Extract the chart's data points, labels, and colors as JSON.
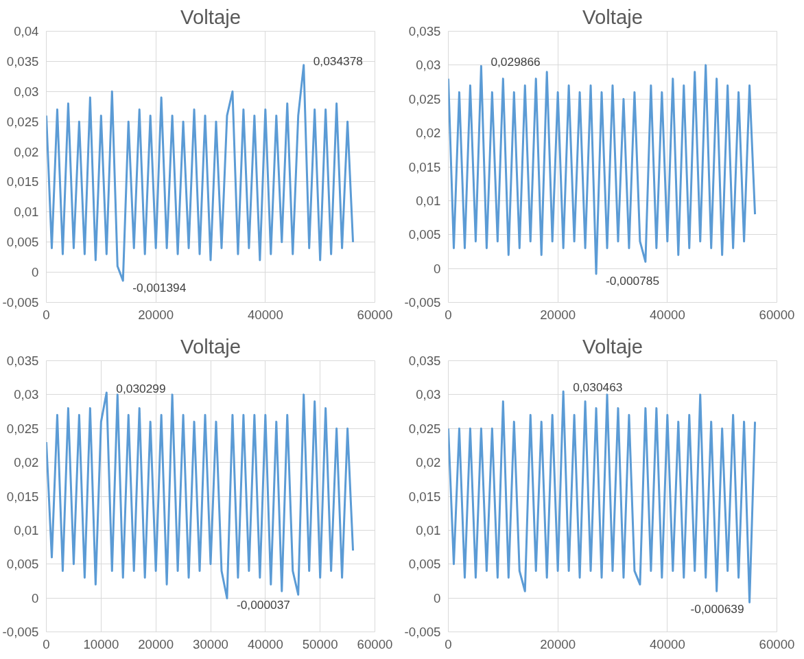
{
  "chart_data": [
    {
      "type": "line",
      "title": "Voltaje",
      "grid": true,
      "marker": "none",
      "line_style": "solid",
      "xlim": [
        0,
        60000
      ],
      "xticks": [
        0,
        20000,
        40000,
        60000
      ],
      "ylim": [
        -0.005,
        0.04
      ],
      "yticks": [
        {
          "value": -0.005,
          "label": "-0,005"
        },
        0,
        {
          "value": 0.005,
          "label": "0,005"
        },
        {
          "value": 0.01,
          "label": "0,01"
        },
        {
          "value": 0.015,
          "label": "0,015"
        },
        {
          "value": 0.02,
          "label": "0,02"
        },
        {
          "value": 0.025,
          "label": "0,025"
        },
        {
          "value": 0.03,
          "label": "0,03"
        },
        {
          "value": 0.035,
          "label": "0,035"
        },
        {
          "value": 0.04,
          "label": "0,04"
        }
      ],
      "annotations": [
        {
          "text": "0,034378",
          "x": 47000,
          "y": 0.034378
        },
        {
          "text": "-0,001394",
          "x": 14000,
          "y": -0.001394
        }
      ],
      "series": [
        {
          "color": "#5b9bd5",
          "x": [
            0,
            1000,
            2000,
            3000,
            4000,
            5000,
            6000,
            7000,
            8000,
            9000,
            10000,
            11000,
            12000,
            13000,
            14000,
            15000,
            16000,
            17000,
            18000,
            19000,
            20000,
            21000,
            22000,
            23000,
            24000,
            25000,
            26000,
            27000,
            28000,
            29000,
            30000,
            31000,
            32000,
            33000,
            34000,
            35000,
            36000,
            37000,
            38000,
            39000,
            40000,
            41000,
            42000,
            43000,
            44000,
            45000,
            46000,
            47000,
            48000,
            49000,
            50000,
            51000,
            52000,
            53000,
            54000,
            55000,
            56000
          ],
          "values": [
            0.026,
            0.004,
            0.027,
            0.003,
            0.028,
            0.004,
            0.025,
            0.003,
            0.029,
            0.002,
            0.026,
            0.003,
            0.03,
            0.001,
            -0.001394,
            0.025,
            0.004,
            0.027,
            0.003,
            0.026,
            0.004,
            0.029,
            0.004,
            0.026,
            0.003,
            0.025,
            0.004,
            0.027,
            0.003,
            0.026,
            0.002,
            0.025,
            0.004,
            0.026,
            0.03,
            0.003,
            0.027,
            0.004,
            0.026,
            0.002,
            0.027,
            0.003,
            0.026,
            0.005,
            0.028,
            0.003,
            0.026,
            0.034378,
            0.004,
            0.027,
            0.002,
            0.027,
            0.003,
            0.028,
            0.004,
            0.025,
            0.005
          ]
        }
      ]
    },
    {
      "type": "line",
      "title": "Voltaje",
      "grid": true,
      "marker": "none",
      "line_style": "solid",
      "xlim": [
        0,
        60000
      ],
      "xticks": [
        0,
        20000,
        40000,
        60000
      ],
      "ylim": [
        -0.005,
        0.035
      ],
      "yticks": [
        {
          "value": -0.005,
          "label": "-0,005"
        },
        0,
        {
          "value": 0.005,
          "label": "0,005"
        },
        {
          "value": 0.01,
          "label": "0,01"
        },
        {
          "value": 0.015,
          "label": "0,015"
        },
        {
          "value": 0.02,
          "label": "0,02"
        },
        {
          "value": 0.025,
          "label": "0,025"
        },
        {
          "value": 0.03,
          "label": "0,03"
        },
        {
          "value": 0.035,
          "label": "0,035"
        }
      ],
      "annotations": [
        {
          "text": "0,029866",
          "x": 6000,
          "y": 0.029866
        },
        {
          "text": "-0,000785",
          "x": 27000,
          "y": -0.000785
        }
      ],
      "series": [
        {
          "color": "#5b9bd5",
          "x": [
            0,
            1000,
            2000,
            3000,
            4000,
            5000,
            6000,
            7000,
            8000,
            9000,
            10000,
            11000,
            12000,
            13000,
            14000,
            15000,
            16000,
            17000,
            18000,
            19000,
            20000,
            21000,
            22000,
            23000,
            24000,
            25000,
            26000,
            27000,
            28000,
            29000,
            30000,
            31000,
            32000,
            33000,
            34000,
            35000,
            36000,
            37000,
            38000,
            39000,
            40000,
            41000,
            42000,
            43000,
            44000,
            45000,
            46000,
            47000,
            48000,
            49000,
            50000,
            51000,
            52000,
            53000,
            54000,
            55000,
            56000
          ],
          "values": [
            0.028,
            0.003,
            0.026,
            0.003,
            0.027,
            0.004,
            0.029866,
            0.003,
            0.026,
            0.004,
            0.028,
            0.002,
            0.026,
            0.003,
            0.027,
            0.004,
            0.028,
            0.002,
            0.029,
            0.004,
            0.026,
            0.003,
            0.027,
            0.004,
            0.026,
            0.003,
            0.027,
            -0.000785,
            0.026,
            0.003,
            0.027,
            0.004,
            0.025,
            0.003,
            0.026,
            0.004,
            0.001,
            0.027,
            0.003,
            0.026,
            0.004,
            0.028,
            0.002,
            0.027,
            0.003,
            0.029,
            0.004,
            0.03,
            0.003,
            0.028,
            0.002,
            0.027,
            0.003,
            0.026,
            0.004,
            0.027,
            0.008
          ]
        }
      ]
    },
    {
      "type": "line",
      "title": "Voltaje",
      "grid": true,
      "marker": "none",
      "line_style": "solid",
      "xlim": [
        0,
        60000
      ],
      "xticks": [
        0,
        10000,
        20000,
        30000,
        40000,
        50000,
        60000
      ],
      "ylim": [
        -0.005,
        0.035
      ],
      "yticks": [
        {
          "value": -0.005,
          "label": "-0,005"
        },
        0,
        {
          "value": 0.005,
          "label": "0,005"
        },
        {
          "value": 0.01,
          "label": "0,01"
        },
        {
          "value": 0.015,
          "label": "0,015"
        },
        {
          "value": 0.02,
          "label": "0,02"
        },
        {
          "value": 0.025,
          "label": "0,025"
        },
        {
          "value": 0.03,
          "label": "0,03"
        },
        {
          "value": 0.035,
          "label": "0,035"
        }
      ],
      "annotations": [
        {
          "text": "0,030299",
          "x": 11000,
          "y": 0.030299
        },
        {
          "text": "-0,000037",
          "x": 33000,
          "y": -3.7e-05
        }
      ],
      "series": [
        {
          "color": "#5b9bd5",
          "x": [
            0,
            1000,
            2000,
            3000,
            4000,
            5000,
            6000,
            7000,
            8000,
            9000,
            10000,
            11000,
            12000,
            13000,
            14000,
            15000,
            16000,
            17000,
            18000,
            19000,
            20000,
            21000,
            22000,
            23000,
            24000,
            25000,
            26000,
            27000,
            28000,
            29000,
            30000,
            31000,
            32000,
            33000,
            34000,
            35000,
            36000,
            37000,
            38000,
            39000,
            40000,
            41000,
            42000,
            43000,
            44000,
            45000,
            46000,
            47000,
            48000,
            49000,
            50000,
            51000,
            52000,
            53000,
            54000,
            55000,
            56000
          ],
          "values": [
            0.023,
            0.006,
            0.027,
            0.004,
            0.028,
            0.005,
            0.027,
            0.003,
            0.028,
            0.002,
            0.026,
            0.030299,
            0.004,
            0.03,
            0.003,
            0.027,
            0.004,
            0.028,
            0.003,
            0.026,
            0.004,
            0.027,
            0.002,
            0.03,
            0.004,
            0.027,
            0.003,
            0.026,
            0.004,
            0.027,
            0.005,
            0.026,
            0.004,
            -3.7e-05,
            0.027,
            0.003,
            0.027,
            0.004,
            0.027,
            0.003,
            0.027,
            0.002,
            0.026,
            0.001,
            0.027,
            0.004,
            0.0005,
            0.03,
            0.004,
            0.029,
            0.003,
            0.028,
            0.004,
            0.025,
            0.003,
            0.025,
            0.007
          ]
        }
      ]
    },
    {
      "type": "line",
      "title": "Voltaje",
      "grid": true,
      "marker": "none",
      "line_style": "solid",
      "xlim": [
        0,
        60000
      ],
      "xticks": [
        0,
        20000,
        40000,
        60000
      ],
      "ylim": [
        -0.005,
        0.035
      ],
      "yticks": [
        {
          "value": -0.005,
          "label": "-0,005"
        },
        0,
        {
          "value": 0.005,
          "label": "0,005"
        },
        {
          "value": 0.01,
          "label": "0,01"
        },
        {
          "value": 0.015,
          "label": "0,015"
        },
        {
          "value": 0.02,
          "label": "0,02"
        },
        {
          "value": 0.025,
          "label": "0,025"
        },
        {
          "value": 0.03,
          "label": "0,03"
        },
        {
          "value": 0.035,
          "label": "0,035"
        }
      ],
      "annotations": [
        {
          "text": "0,030463",
          "x": 21000,
          "y": 0.030463
        },
        {
          "text": "-0,000639",
          "x": 55000,
          "y": -0.000639
        }
      ],
      "series": [
        {
          "color": "#5b9bd5",
          "x": [
            0,
            1000,
            2000,
            3000,
            4000,
            5000,
            6000,
            7000,
            8000,
            9000,
            10000,
            11000,
            12000,
            13000,
            14000,
            15000,
            16000,
            17000,
            18000,
            19000,
            20000,
            21000,
            22000,
            23000,
            24000,
            25000,
            26000,
            27000,
            28000,
            29000,
            30000,
            31000,
            32000,
            33000,
            34000,
            35000,
            36000,
            37000,
            38000,
            39000,
            40000,
            41000,
            42000,
            43000,
            44000,
            45000,
            46000,
            47000,
            48000,
            49000,
            50000,
            51000,
            52000,
            53000,
            54000,
            55000,
            56000
          ],
          "values": [
            0.025,
            0.005,
            0.025,
            0.003,
            0.025,
            0.003,
            0.025,
            0.004,
            0.025,
            0.003,
            0.029,
            0.003,
            0.026,
            0.004,
            0.001,
            0.027,
            0.004,
            0.026,
            0.003,
            0.027,
            0.004,
            0.030463,
            0.004,
            0.027,
            0.003,
            0.029,
            0.004,
            0.028,
            0.003,
            0.03,
            0.004,
            0.028,
            0.003,
            0.027,
            0.004,
            0.002,
            0.028,
            0.004,
            0.028,
            0.003,
            0.027,
            0.004,
            0.026,
            0.003,
            0.027,
            0.004,
            0.03,
            0.003,
            0.026,
            0.001,
            0.025,
            0.004,
            0.027,
            0.003,
            0.026,
            -0.000639,
            0.026
          ]
        }
      ]
    }
  ]
}
